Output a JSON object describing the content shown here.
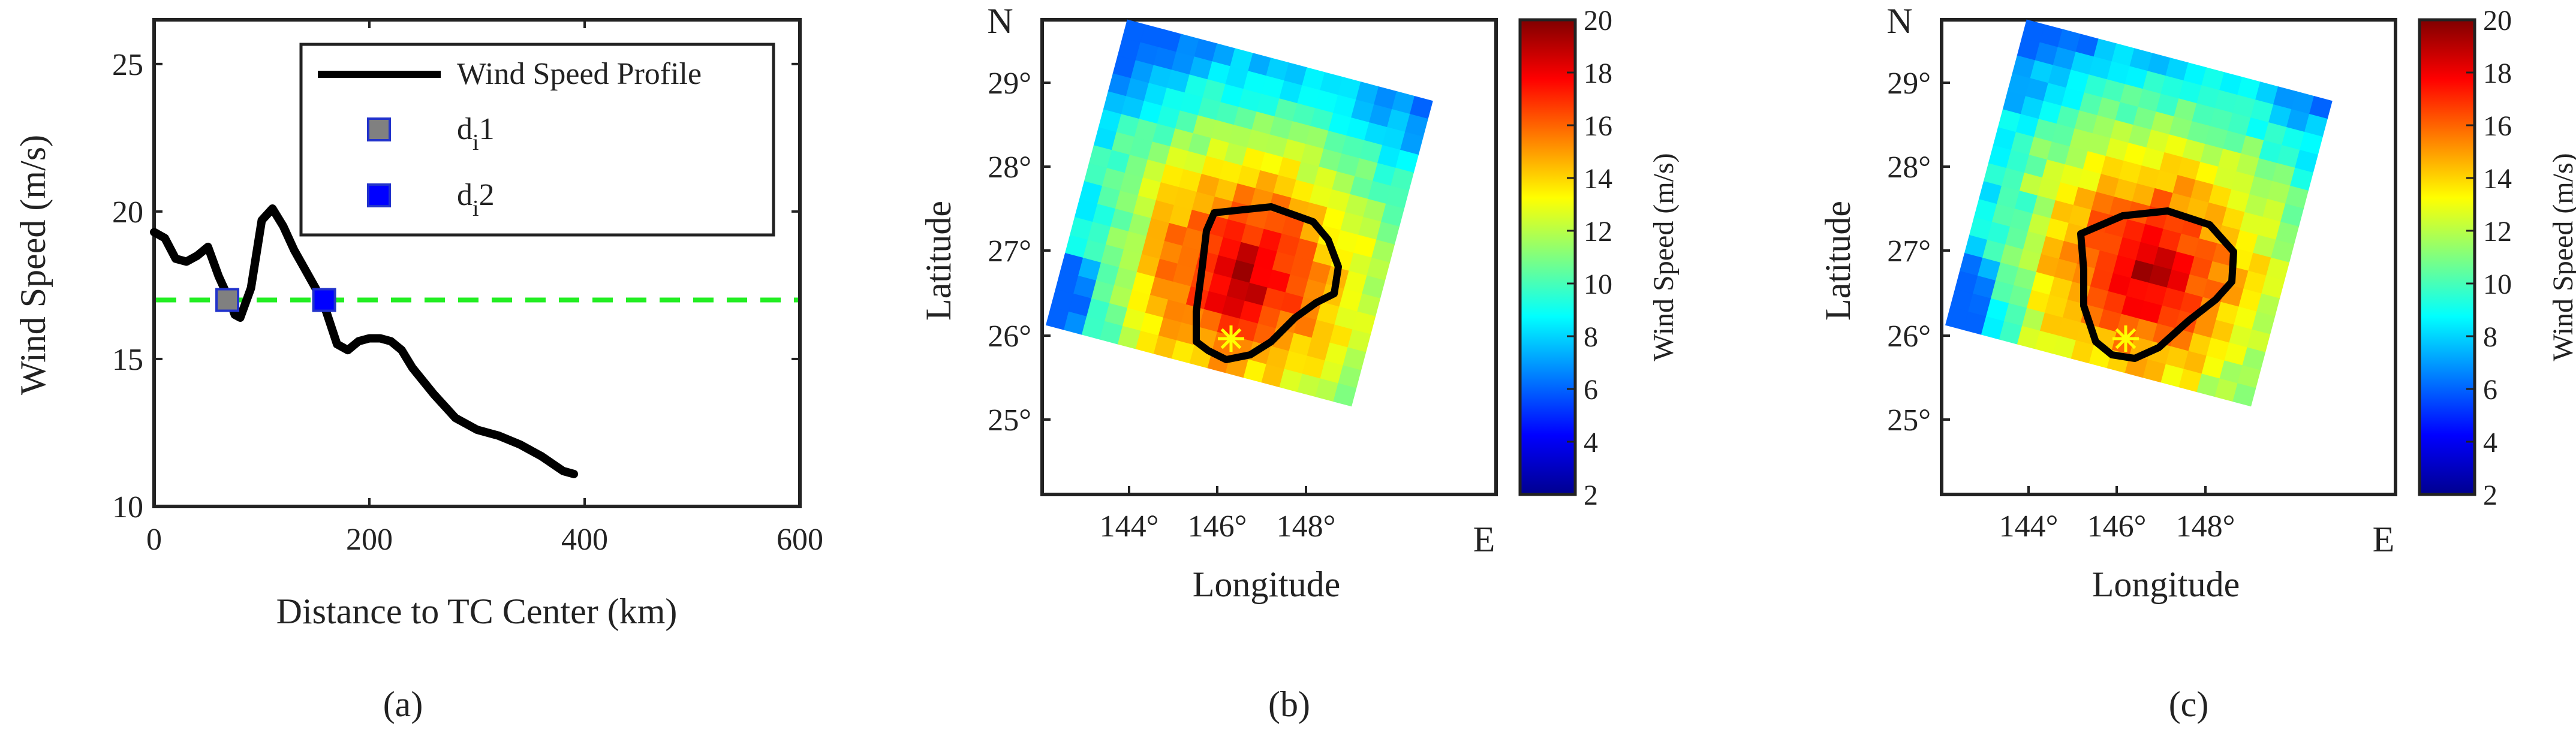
{
  "colors": {
    "profile": "#000000",
    "threshold": "#22ee22",
    "d1": "#808080",
    "d2": "#0000ff",
    "marker_edge": "#2233cc",
    "frame": "#222222",
    "contour": "#000000",
    "star": "#ffff00"
  },
  "chart_data": [
    {
      "type": "line",
      "panel": "(a)",
      "xlabel": "Distance to TC Center (km)",
      "ylabel": "Wind Speed (m/s)",
      "xlim": [
        0,
        600
      ],
      "ylim": [
        10,
        26.5
      ],
      "xticks": [
        0,
        200,
        400,
        600
      ],
      "yticks": [
        10,
        15,
        20,
        25
      ],
      "series": [
        {
          "name": "Wind Speed Profile",
          "x": [
            0,
            10,
            20,
            30,
            40,
            50,
            60,
            70,
            75,
            80,
            90,
            100,
            110,
            120,
            130,
            150,
            160,
            170,
            180,
            190,
            200,
            210,
            220,
            230,
            240,
            260,
            280,
            300,
            310,
            320,
            340,
            360,
            380,
            390
          ],
          "y": [
            19.3,
            19.1,
            18.4,
            18.3,
            18.5,
            18.8,
            17.8,
            17.0,
            16.5,
            16.4,
            17.4,
            19.7,
            20.1,
            19.5,
            18.7,
            17.4,
            16.6,
            15.5,
            15.3,
            15.6,
            15.7,
            15.7,
            15.6,
            15.3,
            14.7,
            13.8,
            13.0,
            12.6,
            12.5,
            12.4,
            12.1,
            11.7,
            11.2,
            11.1
          ]
        }
      ],
      "threshold": {
        "y": 17,
        "style": "dashed"
      },
      "markers": [
        {
          "name": "d_i1",
          "x": 68,
          "y": 17
        },
        {
          "name": "d_i2",
          "x": 158,
          "y": 17
        }
      ],
      "legend": [
        {
          "label": "Wind Speed Profile"
        },
        {
          "label": "d",
          "sub": "i",
          "suffix": "1"
        },
        {
          "label": "d",
          "sub": "i",
          "suffix": "2"
        }
      ]
    },
    {
      "type": "heatmap",
      "panel": "(b)",
      "xlabel": "Longitude",
      "ylabel": "Latitude",
      "xticks": [
        "144°",
        "146°",
        "148°"
      ],
      "yticks": [
        "25°",
        "26°",
        "27°",
        "28°",
        "29°"
      ],
      "north": "N",
      "east": "E",
      "colorbar": {
        "label": "Wind Speed (m/s)",
        "min": 2,
        "max": 20,
        "ticks": [
          2,
          4,
          6,
          8,
          10,
          12,
          14,
          16,
          18,
          20
        ]
      },
      "center_marker": "*"
    },
    {
      "type": "heatmap",
      "panel": "(c)",
      "xlabel": "Longitude",
      "ylabel": "Latitude",
      "xticks": [
        "144°",
        "146°",
        "148°"
      ],
      "yticks": [
        "25°",
        "26°",
        "27°",
        "28°",
        "29°"
      ],
      "north": "N",
      "east": "E",
      "colorbar": {
        "label": "Wind Speed (m/s)",
        "min": 2,
        "max": 20,
        "ticks": [
          2,
          4,
          6,
          8,
          10,
          12,
          14,
          16,
          18,
          20
        ]
      },
      "center_marker": "*"
    }
  ]
}
